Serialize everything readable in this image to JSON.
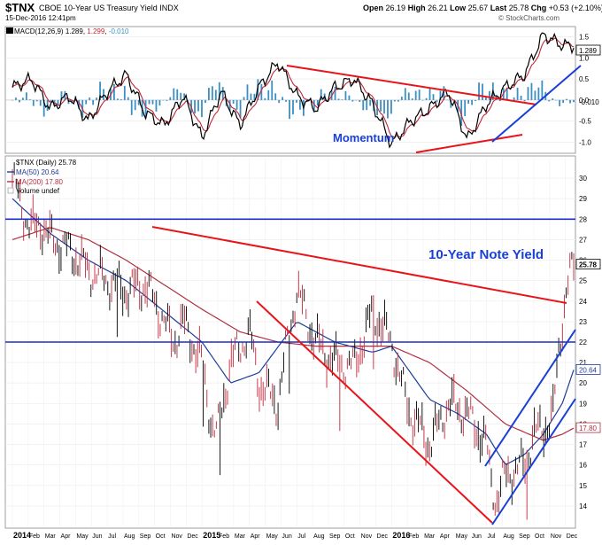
{
  "header": {
    "symbol": "$TNX",
    "name": "CBOE 10-Year US Treasury Yield INDX",
    "date": "15-Dec-2016 12:41pm",
    "watermark": "© StockCharts.com",
    "open_label": "Open",
    "open": "26.19",
    "high_label": "High",
    "high": "26.21",
    "low_label": "Low",
    "low": "25.67",
    "last_label": "Last",
    "last": "25.78",
    "chg_label": "Chg",
    "chg": "+0.53 (+2.10%)"
  },
  "macd_legend": {
    "name": "MACD(12,26,9)",
    "macd": "1.289",
    "signal": "1.299",
    "hist": "-0.010"
  },
  "price_legend": {
    "name": "$TNX (Daily) 25.78",
    "ma50": "MA(50) 20.64",
    "ma200": "MA(200) 17.80",
    "volume": "Volume undef"
  },
  "annotations": {
    "momentum": "Momentum",
    "yield": "10-Year Note Yield"
  },
  "badges": {
    "macd_value": "1.289",
    "macd_hist": "-0.010",
    "last": "25.78",
    "ma50": "20.64",
    "ma200": "17.80"
  },
  "colors": {
    "price": "#000000",
    "ma50": "#1f3d99",
    "ma200": "#b03040",
    "trend": "#e8141a",
    "support": "#1a3fd6",
    "hline": "#1a2fbf",
    "hist": "#3b8fc4",
    "annotation": "#1a3fd6"
  },
  "chart_data": [
    {
      "type": "line",
      "title": "MACD(12,26,9)",
      "yticks": [
        "1.5",
        "1.0",
        "0.5",
        "0.0",
        "-0.5",
        "-1.0"
      ],
      "ylim": [
        -1.2,
        1.7
      ],
      "series": [
        {
          "name": "MACD(12,26,9)",
          "x": [
            2014.0,
            2014.1,
            2014.2,
            2014.3,
            2014.4,
            2014.5,
            2014.6,
            2014.7,
            2014.8,
            2014.9,
            2015.0,
            2015.1,
            2015.2,
            2015.3,
            2015.4,
            2015.5,
            2015.6,
            2015.7,
            2015.8,
            2015.9,
            2016.0,
            2016.1,
            2016.2,
            2016.3,
            2016.4,
            2016.5,
            2016.6,
            2016.7,
            2016.8,
            2016.9,
            2016.96
          ],
          "values": [
            0.3,
            0.5,
            -0.2,
            0.1,
            -0.5,
            0.2,
            0.6,
            -0.3,
            -0.6,
            0.1,
            -0.9,
            0.2,
            -0.6,
            0.3,
            0.9,
            0.1,
            -0.2,
            0.3,
            0.5,
            -0.1,
            -1.05,
            -0.5,
            -0.2,
            0.2,
            -0.95,
            -0.1,
            0.3,
            0.6,
            1.55,
            1.3,
            1.29
          ]
        }
      ],
      "histogram": {
        "name": "-0.010"
      }
    },
    {
      "type": "line",
      "title": "$TNX (Daily) 25.78",
      "ylim": [
        13,
        31
      ],
      "yticks": [
        "30",
        "29",
        "28",
        "27",
        "26",
        "25",
        "24",
        "23",
        "22",
        "21",
        "20",
        "19",
        "18",
        "17",
        "16",
        "15",
        "14"
      ],
      "xticks": [
        "2014",
        "Feb",
        "Mar",
        "Apr",
        "May",
        "Jun",
        "Jul",
        "Aug",
        "Sep",
        "Oct",
        "Nov",
        "Dec",
        "2015",
        "Feb",
        "Mar",
        "Apr",
        "May",
        "Jun",
        "Jul",
        "Aug",
        "Sep",
        "Oct",
        "Nov",
        "Dec",
        "2016",
        "Feb",
        "Mar",
        "Apr",
        "May",
        "Jun",
        "Jul",
        "Aug",
        "Sep",
        "Oct",
        "Nov",
        "Dec"
      ],
      "series": [
        {
          "name": "$TNX",
          "x": [
            2014.0,
            2014.05,
            2014.1,
            2014.15,
            2014.2,
            2014.3,
            2014.4,
            2014.5,
            2014.6,
            2014.7,
            2014.75,
            2014.8,
            2014.85,
            2014.9,
            2015.0,
            2015.05,
            2015.08,
            2015.15,
            2015.25,
            2015.3,
            2015.4,
            2015.45,
            2015.5,
            2015.6,
            2015.7,
            2015.8,
            2015.9,
            2016.0,
            2016.05,
            2016.1,
            2016.15,
            2016.2,
            2016.3,
            2016.4,
            2016.5,
            2016.52,
            2016.55,
            2016.6,
            2016.7,
            2016.75,
            2016.8,
            2016.85,
            2016.88,
            2016.92,
            2016.96
          ],
          "values": [
            30.0,
            28.5,
            27.5,
            27.8,
            27.0,
            26.5,
            25.5,
            25.0,
            24.5,
            24.8,
            24.0,
            23.0,
            22.0,
            23.0,
            21.0,
            18.0,
            17.5,
            21.0,
            22.5,
            20.0,
            19.0,
            22.0,
            24.5,
            22.0,
            21.0,
            20.8,
            23.5,
            22.0,
            20.0,
            18.5,
            17.8,
            17.0,
            19.0,
            18.5,
            17.0,
            15.5,
            14.2,
            15.5,
            16.0,
            17.5,
            17.8,
            18.3,
            21.5,
            24.5,
            25.78
          ]
        },
        {
          "name": "MA(50) 20.64",
          "x": [
            2014.0,
            2014.2,
            2014.4,
            2014.6,
            2014.8,
            2015.0,
            2015.15,
            2015.3,
            2015.5,
            2015.7,
            2015.9,
            2016.0,
            2016.2,
            2016.35,
            2016.5,
            2016.6,
            2016.7,
            2016.8,
            2016.9,
            2016.96
          ],
          "values": [
            29.0,
            27.3,
            26.0,
            25.0,
            23.5,
            22.0,
            20.0,
            20.5,
            23.0,
            22.0,
            21.5,
            21.8,
            19.2,
            18.5,
            17.5,
            16.0,
            16.5,
            17.5,
            19.0,
            20.64
          ]
        },
        {
          "name": "MA(200) 17.80",
          "x": [
            2014.0,
            2014.2,
            2014.4,
            2014.6,
            2014.8,
            2015.0,
            2015.2,
            2015.4,
            2015.6,
            2015.8,
            2016.0,
            2016.2,
            2016.4,
            2016.6,
            2016.8,
            2016.9,
            2016.96
          ],
          "values": [
            27.0,
            27.6,
            27.0,
            26.0,
            24.8,
            23.6,
            22.5,
            22.0,
            21.8,
            21.8,
            21.8,
            21.0,
            19.6,
            18.0,
            17.2,
            17.5,
            17.8
          ]
        }
      ],
      "reference_lines": [
        28,
        22
      ]
    }
  ]
}
